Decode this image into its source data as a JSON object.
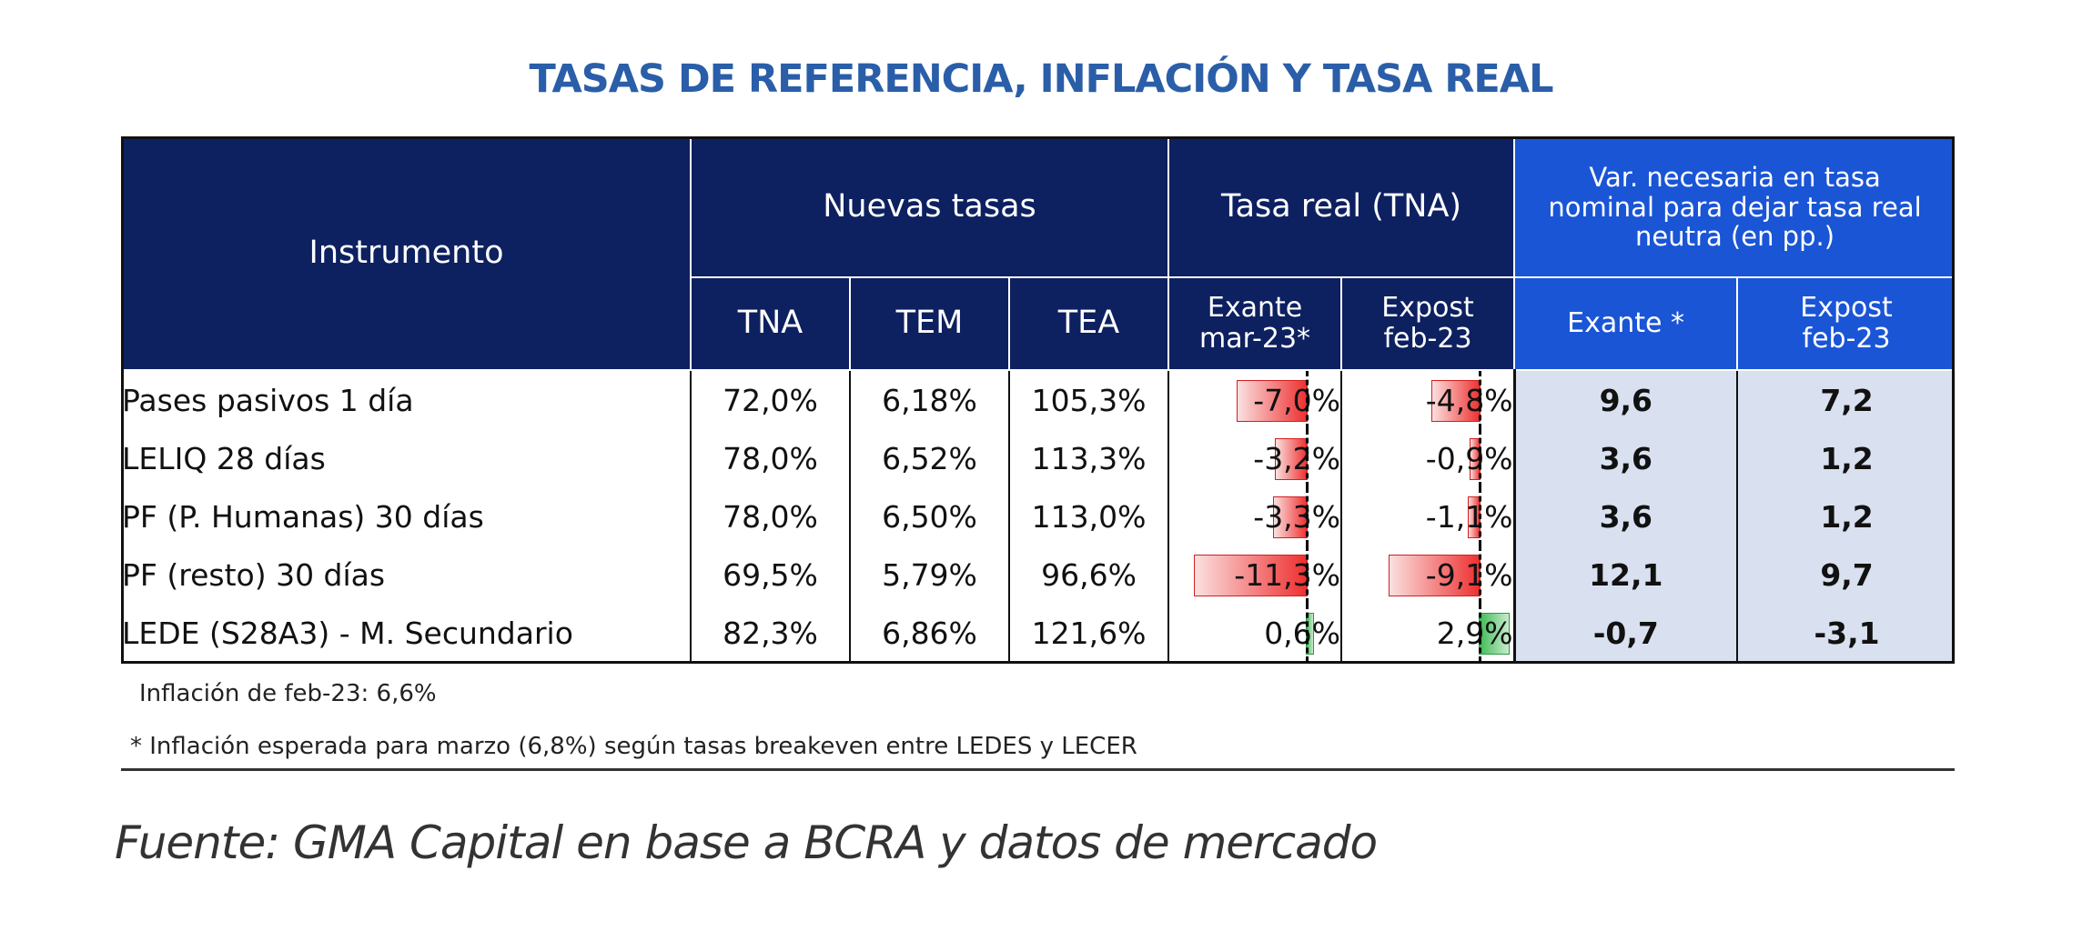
{
  "title": "TASAS DE REFERENCIA, INFLACIÓN Y TASA REAL",
  "headers": {
    "instrumento": "Instrumento",
    "nuevas_tasas": "Nuevas tasas",
    "tasa_real": "Tasa real (TNA)",
    "var_necesaria": "Var. necesaria en tasa nominal para dejar tasa real neutra (en pp.)",
    "tna": "TNA",
    "tem": "TEM",
    "tea": "TEA",
    "exante_line1": "Exante",
    "exante_line2": "mar-23*",
    "expost_line1": "Expost",
    "expost_line2": "feb-23",
    "var_exante": "Exante *",
    "var_expost_line1": "Expost",
    "var_expost_line2": "feb-23"
  },
  "colors": {
    "header_navy": "#0d2060",
    "header_blue": "#1a55d6",
    "title_blue": "#2a5ea8",
    "negative_bar": "#ee3030",
    "positive_bar": "#3fbb55",
    "shaded_cells": "#d9e0f0"
  },
  "chart_data": {
    "type": "table",
    "title": "TASAS DE REFERENCIA, INFLACIÓN Y TASA REAL",
    "columns": [
      "Instrumento",
      "TNA",
      "TEM",
      "TEA",
      "Exante mar-23*",
      "Expost feb-23",
      "Exante *",
      "Expost feb-23"
    ],
    "rows": [
      {
        "instrumento": "Pases pasivos 1 día",
        "tna": "72,0%",
        "tem": "6,18%",
        "tea": "105,3%",
        "real_exante": "-7,0%",
        "real_expost": "-4,8%",
        "var_exante": "9,6",
        "var_expost": "7,2",
        "real_exante_value": -7.0,
        "real_expost_value": -4.8
      },
      {
        "instrumento": "LELIQ 28 días",
        "tna": "78,0%",
        "tem": "6,52%",
        "tea": "113,3%",
        "real_exante": "-3,2%",
        "real_expost": "-0,9%",
        "var_exante": "3,6",
        "var_expost": "1,2",
        "real_exante_value": -3.2,
        "real_expost_value": -0.9
      },
      {
        "instrumento": "PF (P. Humanas) 30 días",
        "tna": "78,0%",
        "tem": "6,50%",
        "tea": "113,0%",
        "real_exante": "-3,3%",
        "real_expost": "-1,1%",
        "var_exante": "3,6",
        "var_expost": "1,2",
        "real_exante_value": -3.3,
        "real_expost_value": -1.1
      },
      {
        "instrumento": "PF (resto) 30 días",
        "tna": "69,5%",
        "tem": "5,79%",
        "tea": "96,6%",
        "real_exante": "-11,3%",
        "real_expost": "-9,1%",
        "var_exante": "12,1",
        "var_expost": "9,7",
        "real_exante_value": -11.3,
        "real_expost_value": -9.1
      },
      {
        "instrumento": "LEDE (S28A3) - M. Secundario",
        "tna": "82,3%",
        "tem": "6,86%",
        "tea": "121,6%",
        "real_exante": "0,6%",
        "real_expost": "2,9%",
        "var_exante": "-0,7",
        "var_expost": "-3,1",
        "real_exante_value": 0.6,
        "real_expost_value": 2.9
      }
    ]
  },
  "notes": {
    "inflacion": "Inflación de feb-23: 6,6%",
    "esperada": "* Inflación esperada para marzo (6,8%) según tasas breakeven entre LEDES y LECER"
  },
  "source": "Fuente: GMA Capital en base a BCRA y datos de mercado"
}
